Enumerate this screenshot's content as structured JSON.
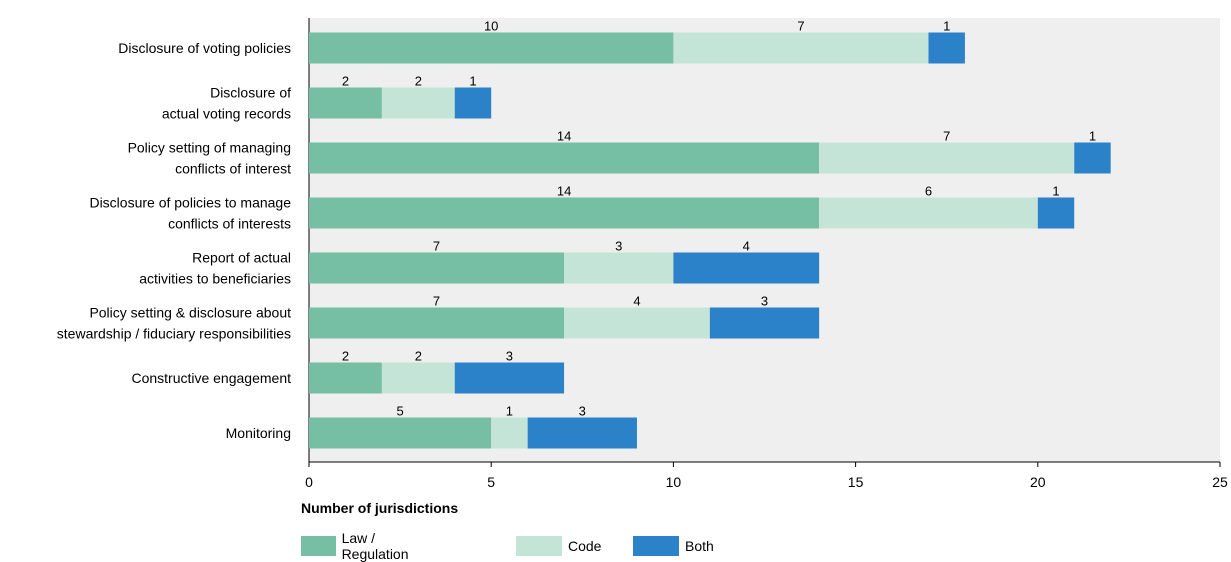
{
  "chart_data": {
    "type": "bar",
    "orientation": "horizontal",
    "stacked": true,
    "categories": [
      [
        "Disclosure of voting policies"
      ],
      [
        "Disclosure of",
        "actual voting records"
      ],
      [
        "Policy setting of managing",
        "conflicts of interest"
      ],
      [
        "Disclosure of policies to manage",
        "conflicts of interests"
      ],
      [
        "Report of actual",
        "activities to beneficiaries"
      ],
      [
        "Policy setting & disclosure about",
        "stewardship / fiduciary responsibilities"
      ],
      [
        "Constructive engagement"
      ],
      [
        "Monitoring"
      ]
    ],
    "series": [
      {
        "name": "Law / Regulation",
        "color": "#76bea4",
        "values": [
          10,
          2,
          14,
          14,
          7,
          7,
          2,
          5
        ]
      },
      {
        "name": "Code",
        "color": "#c5e4d8",
        "values": [
          7,
          2,
          7,
          6,
          3,
          4,
          2,
          1
        ]
      },
      {
        "name": "Both",
        "color": "#2b82c8",
        "values": [
          1,
          1,
          1,
          1,
          4,
          3,
          3,
          3
        ]
      }
    ],
    "xlim": [
      0,
      25
    ],
    "xticks": [
      0,
      5,
      10,
      15,
      20,
      25
    ],
    "xlabel_prefix": "Number of ",
    "xlabel_bold": "jurisdictions",
    "grid": false,
    "legend_position": "bottom",
    "plot_background": "#efefef"
  }
}
